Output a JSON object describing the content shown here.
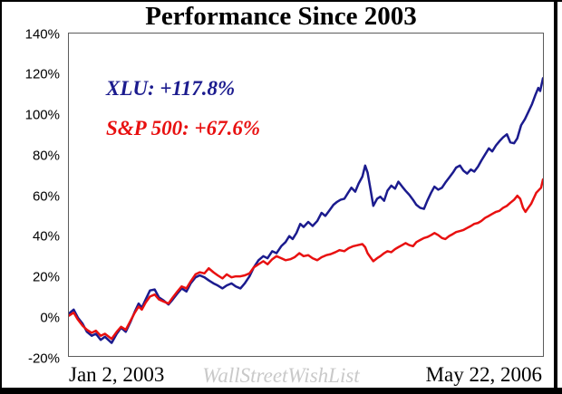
{
  "header": {
    "title": "Performance Since 2003"
  },
  "legend": {
    "items": [
      {
        "label": "XLU: +117.8%",
        "color": "#1b1b8e"
      },
      {
        "label": "S&P 500: +67.6%",
        "color": "#e81010"
      }
    ]
  },
  "y_axis": {
    "ticks": [
      "140%",
      "120%",
      "100%",
      "80%",
      "60%",
      "40%",
      "20%",
      "0%",
      "-20%"
    ]
  },
  "x_axis": {
    "left_label": "Jan 2, 2003",
    "right_label": "May 22, 2006"
  },
  "watermark": {
    "text": "WallStreetWishList"
  },
  "chart_data": {
    "type": "line",
    "title": "Performance Since 2003",
    "xlabel": "",
    "ylabel": "",
    "x_start_label": "Jan 2, 2003",
    "x_end_label": "May 22, 2006",
    "x_unit": "fraction of time axis (0 = Jan 2 2003, 1 = May 22 2006)",
    "y_unit": "percent gain",
    "ylim": [
      -20,
      140
    ],
    "y_tick_step": 20,
    "grid": false,
    "legend_position": "top-left-inside",
    "series": [
      {
        "name": "XLU",
        "summary_label": "XLU: +117.8%",
        "final_value_percent": 117.8,
        "color": "#1b1b8e",
        "points": [
          [
            0,
            1
          ],
          [
            0.01,
            3
          ],
          [
            0.019,
            -1
          ],
          [
            0.029,
            -4
          ],
          [
            0.038,
            -8
          ],
          [
            0.048,
            -10
          ],
          [
            0.057,
            -9
          ],
          [
            0.067,
            -12
          ],
          [
            0.076,
            -10.5
          ],
          [
            0.09,
            -13.5
          ],
          [
            0.101,
            -9
          ],
          [
            0.11,
            -6
          ],
          [
            0.12,
            -8
          ],
          [
            0.13,
            -3
          ],
          [
            0.139,
            2
          ],
          [
            0.147,
            6
          ],
          [
            0.154,
            4
          ],
          [
            0.162,
            8
          ],
          [
            0.171,
            12.5
          ],
          [
            0.181,
            13
          ],
          [
            0.19,
            9
          ],
          [
            0.2,
            7.5
          ],
          [
            0.21,
            5.5
          ],
          [
            0.219,
            8
          ],
          [
            0.229,
            11
          ],
          [
            0.238,
            13.5
          ],
          [
            0.248,
            12
          ],
          [
            0.257,
            16
          ],
          [
            0.267,
            19
          ],
          [
            0.276,
            20
          ],
          [
            0.286,
            19
          ],
          [
            0.295,
            17.5
          ],
          [
            0.305,
            16
          ],
          [
            0.314,
            15
          ],
          [
            0.324,
            13.5
          ],
          [
            0.333,
            15
          ],
          [
            0.343,
            16
          ],
          [
            0.352,
            14.5
          ],
          [
            0.362,
            13.5
          ],
          [
            0.371,
            16
          ],
          [
            0.381,
            19.5
          ],
          [
            0.39,
            24
          ],
          [
            0.4,
            27.5
          ],
          [
            0.41,
            29.5
          ],
          [
            0.419,
            28.5
          ],
          [
            0.429,
            32
          ],
          [
            0.438,
            31
          ],
          [
            0.448,
            34.5
          ],
          [
            0.457,
            36.5
          ],
          [
            0.465,
            39.5
          ],
          [
            0.472,
            38
          ],
          [
            0.48,
            41
          ],
          [
            0.488,
            45.5
          ],
          [
            0.495,
            44
          ],
          [
            0.505,
            46.5
          ],
          [
            0.514,
            44.5
          ],
          [
            0.524,
            47
          ],
          [
            0.533,
            51
          ],
          [
            0.541,
            49.5
          ],
          [
            0.549,
            52
          ],
          [
            0.558,
            55
          ],
          [
            0.566,
            56.5
          ],
          [
            0.573,
            57.5
          ],
          [
            0.581,
            58
          ],
          [
            0.589,
            61
          ],
          [
            0.596,
            63.5
          ],
          [
            0.604,
            61.5
          ],
          [
            0.611,
            65.5
          ],
          [
            0.619,
            69
          ],
          [
            0.625,
            74.5
          ],
          [
            0.63,
            71
          ],
          [
            0.636,
            63
          ],
          [
            0.642,
            54.5
          ],
          [
            0.65,
            58
          ],
          [
            0.657,
            59
          ],
          [
            0.665,
            57
          ],
          [
            0.672,
            62
          ],
          [
            0.68,
            64.5
          ],
          [
            0.688,
            63
          ],
          [
            0.695,
            66.5
          ],
          [
            0.703,
            64
          ],
          [
            0.71,
            62
          ],
          [
            0.718,
            60
          ],
          [
            0.726,
            57.5
          ],
          [
            0.733,
            55
          ],
          [
            0.741,
            53.5
          ],
          [
            0.749,
            53
          ],
          [
            0.756,
            57
          ],
          [
            0.764,
            61
          ],
          [
            0.771,
            64
          ],
          [
            0.779,
            62.5
          ],
          [
            0.787,
            63.5
          ],
          [
            0.794,
            66
          ],
          [
            0.802,
            68.5
          ],
          [
            0.81,
            71
          ],
          [
            0.817,
            73.5
          ],
          [
            0.825,
            74.5
          ],
          [
            0.832,
            72
          ],
          [
            0.84,
            70.5
          ],
          [
            0.848,
            72.5
          ],
          [
            0.855,
            71.5
          ],
          [
            0.863,
            74
          ],
          [
            0.87,
            77
          ],
          [
            0.878,
            80
          ],
          [
            0.886,
            83
          ],
          [
            0.893,
            81.5
          ],
          [
            0.901,
            84.5
          ],
          [
            0.908,
            86.5
          ],
          [
            0.916,
            88.5
          ],
          [
            0.924,
            90
          ],
          [
            0.931,
            86
          ],
          [
            0.939,
            85.5
          ],
          [
            0.946,
            88
          ],
          [
            0.954,
            94.5
          ],
          [
            0.962,
            97.5
          ],
          [
            0.969,
            101
          ],
          [
            0.977,
            105
          ],
          [
            0.984,
            109.5
          ],
          [
            0.99,
            113
          ],
          [
            0.994,
            111.5
          ],
          [
            1,
            117.8
          ]
        ]
      },
      {
        "name": "S&P 500",
        "summary_label": "S&P 500: +67.6%",
        "final_value_percent": 67.6,
        "color": "#e81010",
        "points": [
          [
            0,
            0
          ],
          [
            0.01,
            1.5
          ],
          [
            0.019,
            -2
          ],
          [
            0.029,
            -5
          ],
          [
            0.038,
            -7
          ],
          [
            0.048,
            -8.5
          ],
          [
            0.057,
            -7.5
          ],
          [
            0.067,
            -10
          ],
          [
            0.076,
            -9
          ],
          [
            0.09,
            -11.5
          ],
          [
            0.101,
            -8
          ],
          [
            0.11,
            -5.5
          ],
          [
            0.12,
            -7
          ],
          [
            0.13,
            -2.5
          ],
          [
            0.139,
            1.5
          ],
          [
            0.147,
            4.5
          ],
          [
            0.154,
            3
          ],
          [
            0.162,
            6.5
          ],
          [
            0.171,
            9.5
          ],
          [
            0.181,
            10.5
          ],
          [
            0.19,
            8
          ],
          [
            0.2,
            7
          ],
          [
            0.21,
            6
          ],
          [
            0.219,
            9
          ],
          [
            0.229,
            12
          ],
          [
            0.238,
            14.5
          ],
          [
            0.248,
            13.5
          ],
          [
            0.257,
            17
          ],
          [
            0.267,
            20.5
          ],
          [
            0.276,
            21.5
          ],
          [
            0.286,
            21
          ],
          [
            0.295,
            23.5
          ],
          [
            0.305,
            21.5
          ],
          [
            0.314,
            20
          ],
          [
            0.324,
            18.5
          ],
          [
            0.333,
            20.5
          ],
          [
            0.343,
            19
          ],
          [
            0.352,
            19.5
          ],
          [
            0.362,
            19.5
          ],
          [
            0.371,
            20
          ],
          [
            0.381,
            21
          ],
          [
            0.39,
            24
          ],
          [
            0.4,
            25.5
          ],
          [
            0.41,
            27
          ],
          [
            0.419,
            25.5
          ],
          [
            0.429,
            28
          ],
          [
            0.438,
            29.5
          ],
          [
            0.448,
            28.5
          ],
          [
            0.457,
            27.5
          ],
          [
            0.467,
            28
          ],
          [
            0.476,
            29
          ],
          [
            0.486,
            31
          ],
          [
            0.495,
            29.5
          ],
          [
            0.505,
            30
          ],
          [
            0.514,
            28.5
          ],
          [
            0.524,
            27.5
          ],
          [
            0.533,
            29
          ],
          [
            0.543,
            30
          ],
          [
            0.552,
            30.5
          ],
          [
            0.562,
            31.5
          ],
          [
            0.571,
            32.5
          ],
          [
            0.581,
            32
          ],
          [
            0.59,
            33.5
          ],
          [
            0.6,
            34.5
          ],
          [
            0.61,
            35
          ],
          [
            0.619,
            35.5
          ],
          [
            0.625,
            34
          ],
          [
            0.63,
            31
          ],
          [
            0.636,
            29
          ],
          [
            0.642,
            27
          ],
          [
            0.65,
            28.5
          ],
          [
            0.657,
            29.5
          ],
          [
            0.665,
            31
          ],
          [
            0.672,
            32
          ],
          [
            0.68,
            31.5
          ],
          [
            0.688,
            33
          ],
          [
            0.695,
            34
          ],
          [
            0.703,
            35
          ],
          [
            0.71,
            36
          ],
          [
            0.718,
            35
          ],
          [
            0.726,
            34.5
          ],
          [
            0.733,
            36.5
          ],
          [
            0.741,
            37.5
          ],
          [
            0.749,
            38.5
          ],
          [
            0.756,
            39
          ],
          [
            0.764,
            40
          ],
          [
            0.771,
            41
          ],
          [
            0.779,
            40
          ],
          [
            0.787,
            38.5
          ],
          [
            0.794,
            38
          ],
          [
            0.802,
            39.5
          ],
          [
            0.81,
            40.5
          ],
          [
            0.817,
            41.5
          ],
          [
            0.825,
            42
          ],
          [
            0.832,
            42.5
          ],
          [
            0.84,
            43.5
          ],
          [
            0.848,
            44.5
          ],
          [
            0.855,
            45.5
          ],
          [
            0.863,
            46
          ],
          [
            0.87,
            47
          ],
          [
            0.878,
            48.5
          ],
          [
            0.886,
            49.5
          ],
          [
            0.893,
            50.5
          ],
          [
            0.901,
            51.5
          ],
          [
            0.908,
            52
          ],
          [
            0.916,
            53.5
          ],
          [
            0.924,
            54.5
          ],
          [
            0.931,
            56
          ],
          [
            0.939,
            57.5
          ],
          [
            0.946,
            59.5
          ],
          [
            0.952,
            58
          ],
          [
            0.958,
            53.5
          ],
          [
            0.963,
            51.5
          ],
          [
            0.969,
            53.5
          ],
          [
            0.975,
            55.5
          ],
          [
            0.981,
            58.5
          ],
          [
            0.986,
            61
          ],
          [
            0.992,
            62.5
          ],
          [
            0.996,
            63.5
          ],
          [
            1,
            67.6
          ]
        ]
      }
    ]
  }
}
